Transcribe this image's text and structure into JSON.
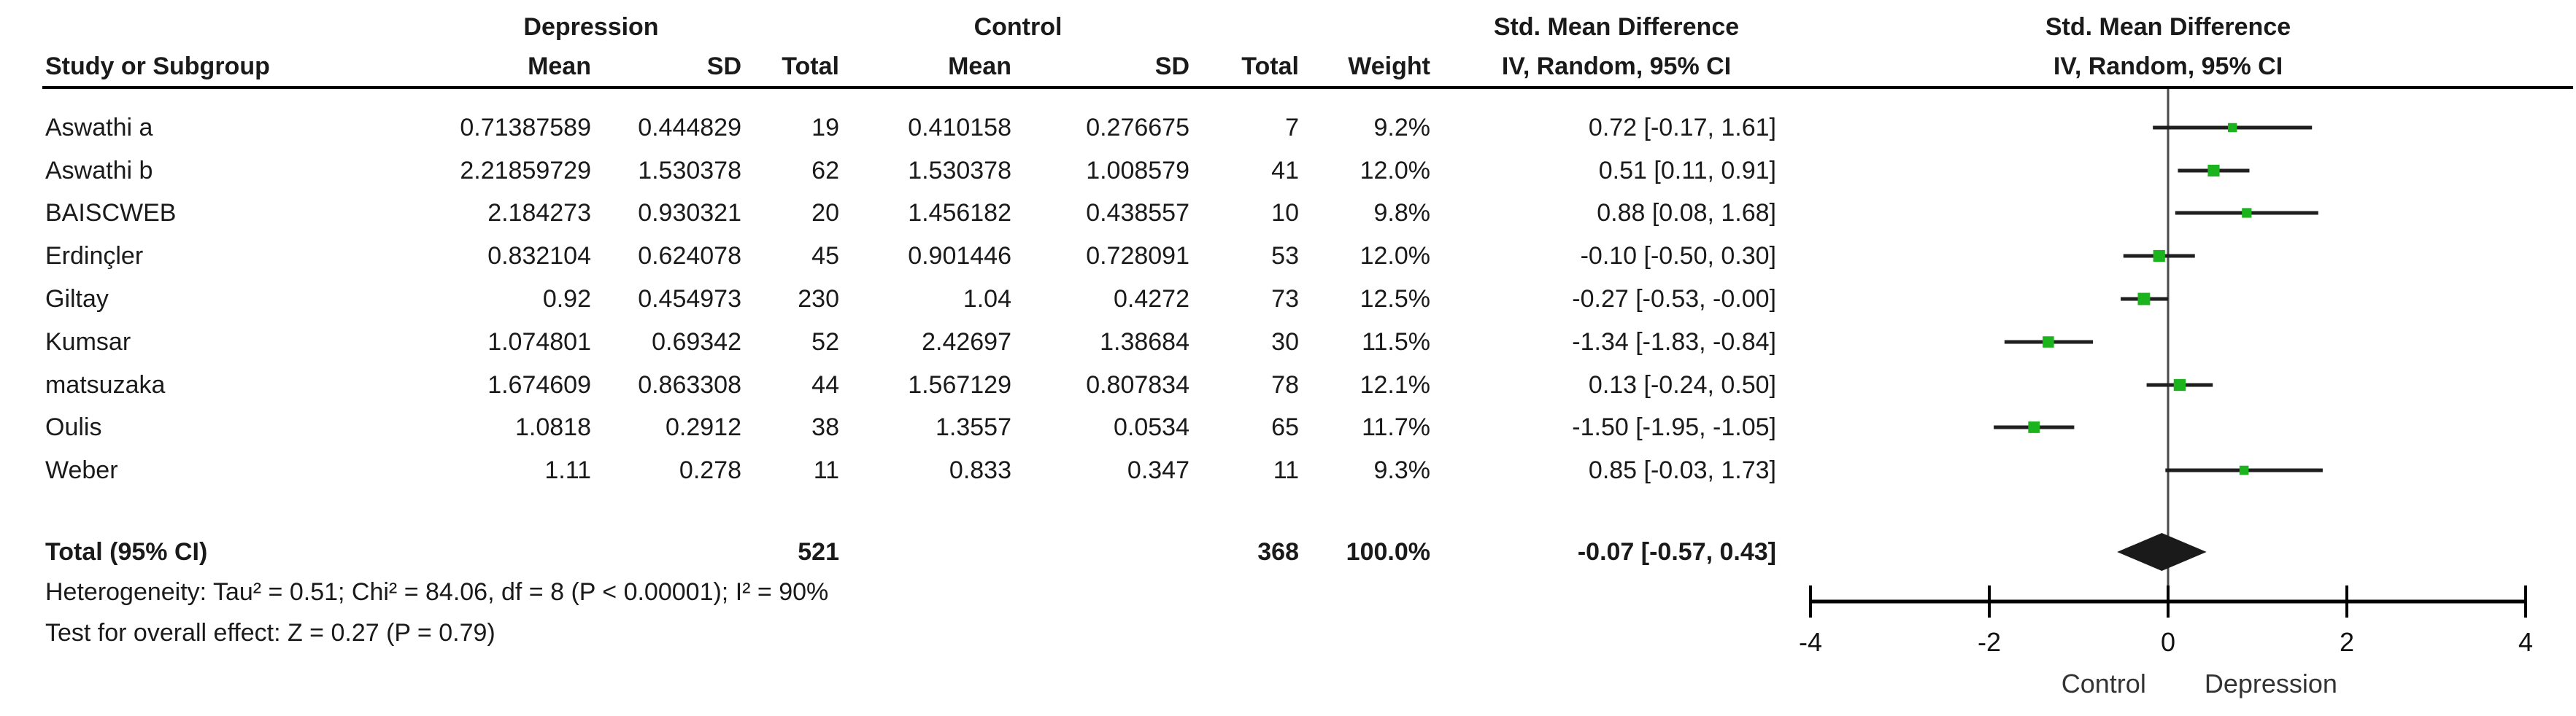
{
  "header": {
    "group1": "Depression",
    "group2": "Control",
    "smd_values_title": "Std. Mean Difference",
    "smd_values_sub": "IV, Random, 95% CI",
    "smd_plot_title": "Std. Mean Difference",
    "smd_plot_sub": "IV, Random, 95% CI",
    "col_study": "Study or Subgroup",
    "col_mean": "Mean",
    "col_sd": "SD",
    "col_total": "Total",
    "col_weight": "Weight"
  },
  "table": {
    "rows": [
      {
        "study": "Aswathi a",
        "mean1": "0.71387589",
        "sd1": "0.444829",
        "n1": "19",
        "mean2": "0.410158",
        "sd2": "0.276675",
        "n2": "7",
        "weight": "9.2%",
        "ci": "0.72 [-0.17, 1.61]"
      },
      {
        "study": "Aswathi b",
        "mean1": "2.21859729",
        "sd1": "1.530378",
        "n1": "62",
        "mean2": "1.530378",
        "sd2": "1.008579",
        "n2": "41",
        "weight": "12.0%",
        "ci": "0.51 [0.11, 0.91]"
      },
      {
        "study": "BAISCWEB",
        "mean1": "2.184273",
        "sd1": "0.930321",
        "n1": "20",
        "mean2": "1.456182",
        "sd2": "0.438557",
        "n2": "10",
        "weight": "9.8%",
        "ci": "0.88 [0.08, 1.68]"
      },
      {
        "study": "Erdinçler",
        "mean1": "0.832104",
        "sd1": "0.624078",
        "n1": "45",
        "mean2": "0.901446",
        "sd2": "0.728091",
        "n2": "53",
        "weight": "12.0%",
        "ci": "-0.10 [-0.50, 0.30]"
      },
      {
        "study": "Giltay",
        "mean1": "0.92",
        "sd1": "0.454973",
        "n1": "230",
        "mean2": "1.04",
        "sd2": "0.4272",
        "n2": "73",
        "weight": "12.5%",
        "ci": "-0.27 [-0.53, -0.00]"
      },
      {
        "study": "Kumsar",
        "mean1": "1.074801",
        "sd1": "0.69342",
        "n1": "52",
        "mean2": "2.42697",
        "sd2": "1.38684",
        "n2": "30",
        "weight": "11.5%",
        "ci": "-1.34 [-1.83, -0.84]"
      },
      {
        "study": "matsuzaka",
        "mean1": "1.674609",
        "sd1": "0.863308",
        "n1": "44",
        "mean2": "1.567129",
        "sd2": "0.807834",
        "n2": "78",
        "weight": "12.1%",
        "ci": "0.13 [-0.24, 0.50]"
      },
      {
        "study": "Oulis",
        "mean1": "1.0818",
        "sd1": "0.2912",
        "n1": "38",
        "mean2": "1.3557",
        "sd2": "0.0534",
        "n2": "65",
        "weight": "11.7%",
        "ci": "-1.50 [-1.95, -1.05]"
      },
      {
        "study": "Weber",
        "mean1": "1.11",
        "sd1": "0.278",
        "n1": "11",
        "mean2": "0.833",
        "sd2": "0.347",
        "n2": "11",
        "weight": "9.3%",
        "ci": "0.85 [-0.03, 1.73]"
      }
    ],
    "total": {
      "label": "Total (95% CI)",
      "n1": "521",
      "n2": "368",
      "weight": "100.0%",
      "ci": "-0.07 [-0.57, 0.43]"
    },
    "heterogeneity": "Heterogeneity: Tau² = 0.51; Chi² = 84.06, df = 8 (P < 0.00001); I² = 90%",
    "overall_effect": "Test for overall effect: Z = 0.27 (P = 0.79)"
  },
  "chart_data": {
    "type": "forest",
    "title": "Std. Mean Difference",
    "method_label": "IV, Random, 95% CI",
    "xlim": [
      -4,
      4
    ],
    "x_ticks": [
      -4,
      -2,
      0,
      2,
      4
    ],
    "axis_label_left": "Control",
    "axis_label_right": "Depression",
    "marker_color": "#1cb41c",
    "line_color": "#1f1f1f",
    "zero_line_color": "#4a4a4a",
    "studies": [
      {
        "name": "Aswathi a",
        "est": 0.72,
        "lo": -0.17,
        "hi": 1.61,
        "weight": 9.2
      },
      {
        "name": "Aswathi b",
        "est": 0.51,
        "lo": 0.11,
        "hi": 0.91,
        "weight": 12.0
      },
      {
        "name": "BAISCWEB",
        "est": 0.88,
        "lo": 0.08,
        "hi": 1.68,
        "weight": 9.8
      },
      {
        "name": "Erdinçler",
        "est": -0.1,
        "lo": -0.5,
        "hi": 0.3,
        "weight": 12.0
      },
      {
        "name": "Giltay",
        "est": -0.27,
        "lo": -0.53,
        "hi": 0.0,
        "weight": 12.5
      },
      {
        "name": "Kumsar",
        "est": -1.34,
        "lo": -1.83,
        "hi": -0.84,
        "weight": 11.5
      },
      {
        "name": "matsuzaka",
        "est": 0.13,
        "lo": -0.24,
        "hi": 0.5,
        "weight": 12.1
      },
      {
        "name": "Oulis",
        "est": -1.5,
        "lo": -1.95,
        "hi": -1.05,
        "weight": 11.7
      },
      {
        "name": "Weber",
        "est": 0.85,
        "lo": -0.03,
        "hi": 1.73,
        "weight": 9.3
      }
    ],
    "total": {
      "name": "Total (95% CI)",
      "est": -0.07,
      "lo": -0.57,
      "hi": 0.43
    }
  }
}
